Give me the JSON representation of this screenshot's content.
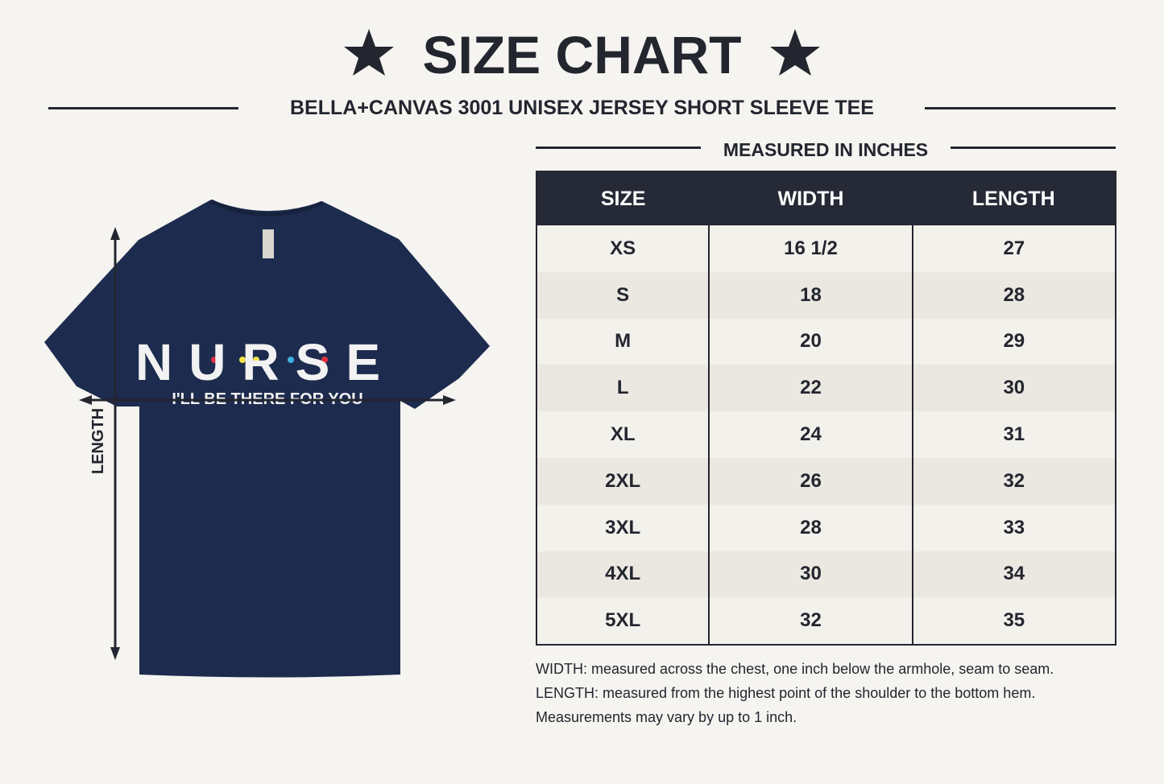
{
  "header": {
    "title": "SIZE CHART",
    "subtitle": "BELLA+CANVAS 3001 UNISEX JERSEY SHORT SLEEVE TEE"
  },
  "shirt": {
    "graphic_title": "NURSE",
    "graphic_tagline": "I'LL BE THERE FOR YOU",
    "measure_label": "LENGTH"
  },
  "table": {
    "caption": "MEASURED IN INCHES",
    "columns": [
      "SIZE",
      "WIDTH",
      "LENGTH"
    ],
    "rows": [
      [
        "XS",
        "16 1/2",
        "27"
      ],
      [
        "S",
        "18",
        "28"
      ],
      [
        "M",
        "20",
        "29"
      ],
      [
        "L",
        "22",
        "30"
      ],
      [
        "XL",
        "24",
        "31"
      ],
      [
        "2XL",
        "26",
        "32"
      ],
      [
        "3XL",
        "28",
        "33"
      ],
      [
        "4XL",
        "30",
        "34"
      ],
      [
        "5XL",
        "32",
        "35"
      ]
    ]
  },
  "notes": [
    "WIDTH: measured across the chest, one inch below the armhole, seam to seam.",
    "LENGTH: measured from the highest point of the shoulder to the bottom hem.",
    "Measurements may vary by up to 1 inch."
  ]
}
